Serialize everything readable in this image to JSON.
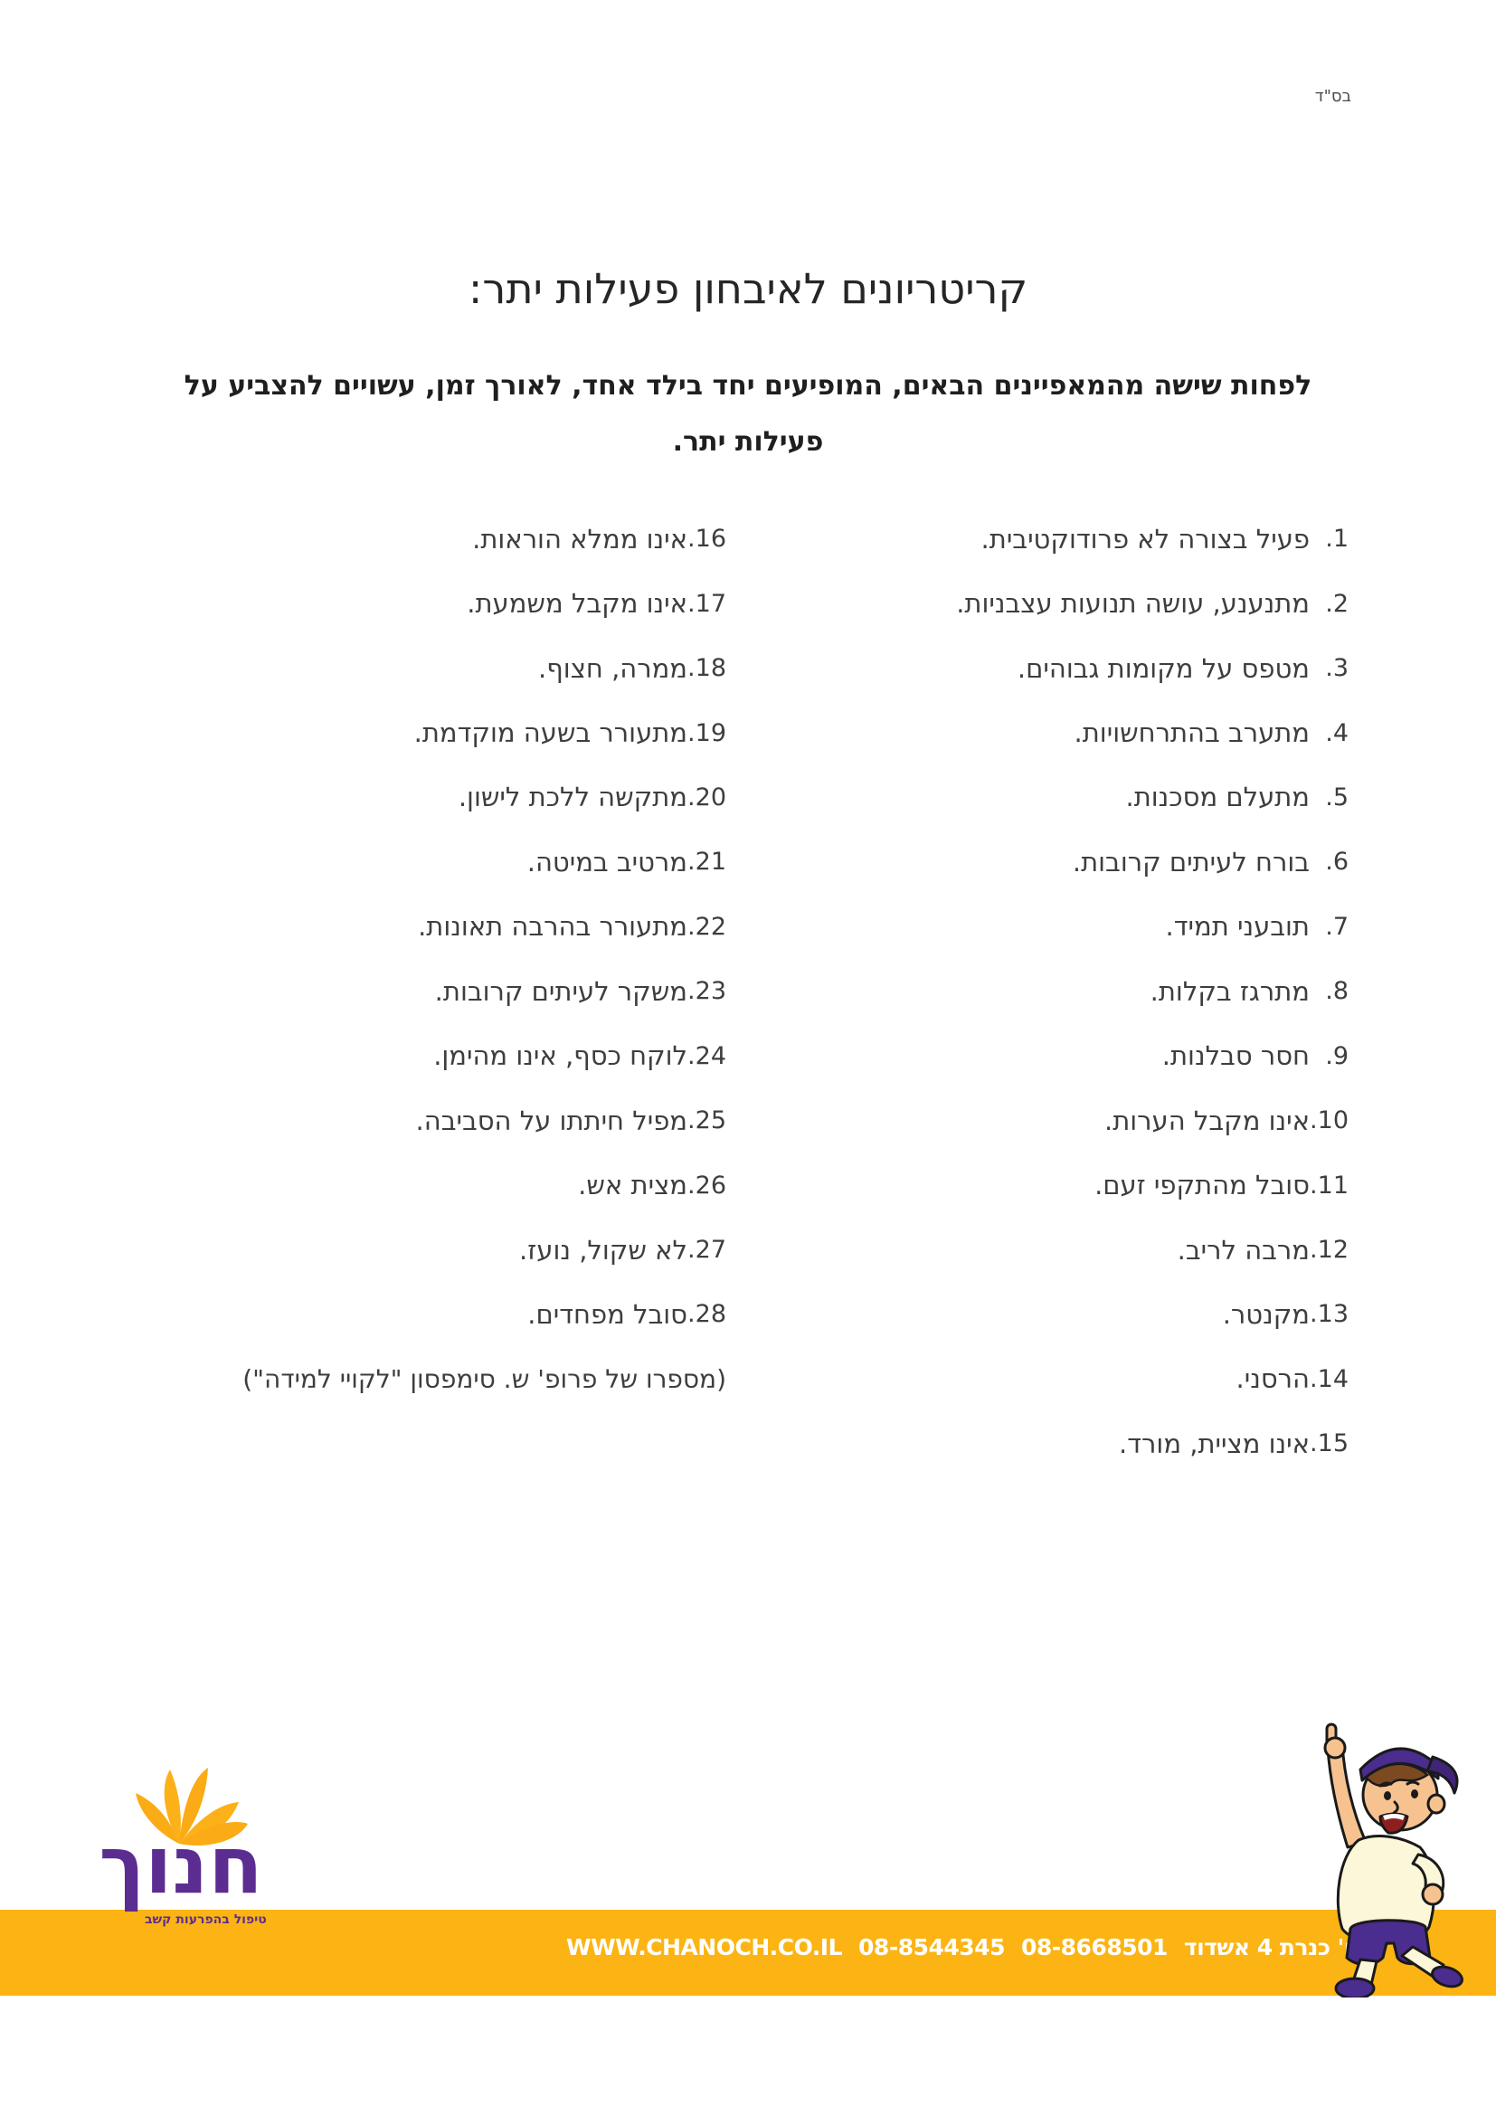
{
  "page": {
    "besd": "בס\"ד",
    "title": "קריטריונים לאיבחון פעילות יתר:",
    "subtitle_line1": "לפחות שישה מהמאפיינים הבאים, המופיעים יחד בילד אחד, לאורך זמן, עשויים להצביע על",
    "subtitle_line2": "פעילות יתר."
  },
  "list": {
    "right_column": [
      {
        "n": "1",
        "t": "פעיל בצורה לא פרודוקטיבית."
      },
      {
        "n": "2",
        "t": "מתנענע, עושה תנועות עצבניות."
      },
      {
        "n": "3",
        "t": "מטפס על מקומות גבוהים."
      },
      {
        "n": "4",
        "t": "מתערב בהתרחשויות."
      },
      {
        "n": "5",
        "t": "מתעלם מסכנות."
      },
      {
        "n": "6",
        "t": "בורח לעיתים קרובות."
      },
      {
        "n": "7",
        "t": "תובעני תמיד."
      },
      {
        "n": "8",
        "t": "מתרגז בקלות."
      },
      {
        "n": "9",
        "t": "חסר סבלנות."
      },
      {
        "n": "10",
        "t": "אינו מקבל הערות."
      },
      {
        "n": "11",
        "t": "סובל מהתקפי זעם."
      },
      {
        "n": "12",
        "t": "מרבה לריב."
      },
      {
        "n": "13",
        "t": "מקנטר."
      },
      {
        "n": "14",
        "t": "הרסני."
      },
      {
        "n": "15",
        "t": "אינו מציית, מורד."
      }
    ],
    "left_column": [
      {
        "n": "16",
        "t": "אינו ממלא הוראות."
      },
      {
        "n": "17",
        "t": "אינו מקבל משמעת."
      },
      {
        "n": "18",
        "t": "ממרה, חצוף."
      },
      {
        "n": "19",
        "t": "מתעורר בשעה מוקדמת."
      },
      {
        "n": "20",
        "t": "מתקשה ללכת לישון."
      },
      {
        "n": "21",
        "t": "מרטיב במיטה."
      },
      {
        "n": "22",
        "t": "מתעורר בהרבה תאונות."
      },
      {
        "n": "23",
        "t": "משקר לעיתים קרובות."
      },
      {
        "n": "24",
        "t": "לוקח כסף, אינו מהימן."
      },
      {
        "n": "25",
        "t": "מפיל חיתתו על הסביבה."
      },
      {
        "n": "26",
        "t": "מצית אש."
      },
      {
        "n": "27",
        "t": "לא שקול, נועז."
      },
      {
        "n": "28",
        "t": "סובל מפחדים."
      }
    ],
    "note": "(מספרו של פרופ' ש. סימפסון \"לקויי למידה\")"
  },
  "logo": {
    "name": "חנוך",
    "tagline": "טיפול בהפרעות קשב",
    "petals_icon": "fan-of-leaves-icon"
  },
  "footer": {
    "website": "WWW.CHANOCH.CO.IL",
    "phone1": "08-8544345",
    "phone2": "08-8668501",
    "address": "רח' כנרת 4 אשדוד"
  },
  "mascot": "cartoon-boy-pointing-up",
  "colors": {
    "accent_yellow": "#fbb414",
    "petal_orange": "#fbab15",
    "brand_purple": "#5c2d91",
    "text_dark": "#3e3e3e"
  }
}
